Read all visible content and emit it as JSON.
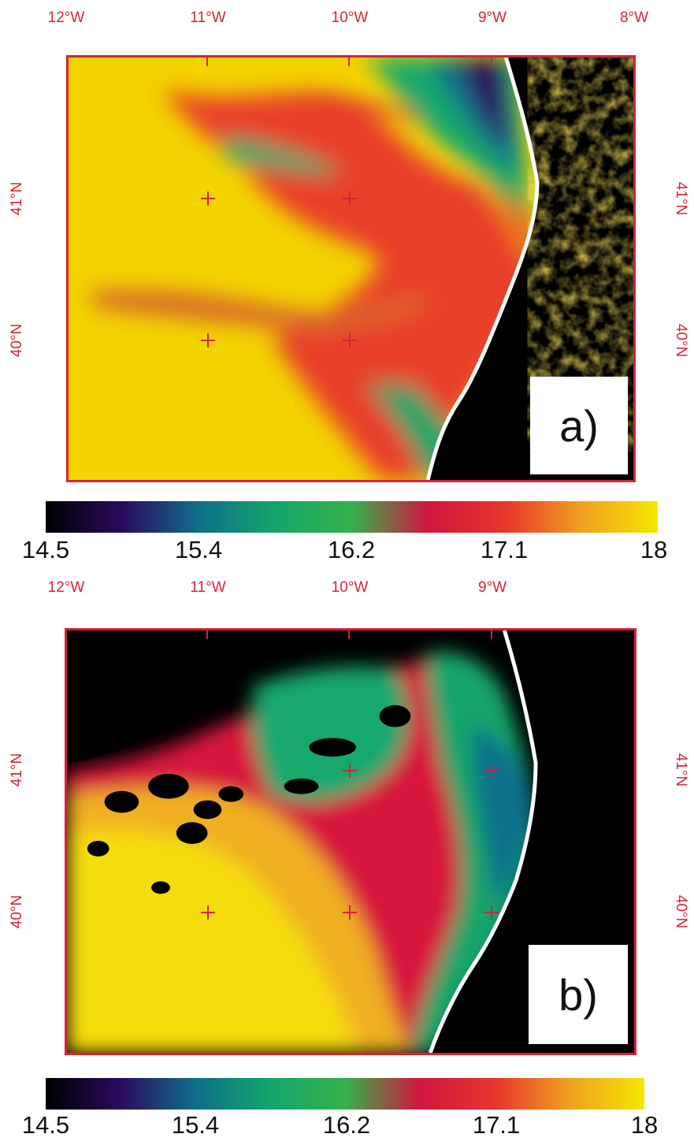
{
  "panels": [
    {
      "id": "a",
      "label": "a)",
      "lon_labels": [
        "12°W",
        "11°W",
        "10°W",
        "9°W",
        "8°W"
      ],
      "lat_labels": [
        "41°N",
        "40°N"
      ]
    },
    {
      "id": "b",
      "label": "b)",
      "lon_labels": [
        "12°W",
        "11°W",
        "10°W",
        "9°W"
      ],
      "lat_labels": [
        "41°N",
        "40°N"
      ]
    }
  ],
  "colorbar": {
    "ticks": [
      "14.5",
      "15.4",
      "16.2",
      "17.1",
      "18"
    ],
    "colors": [
      "#000000",
      "#2a0b5e",
      "#0f6e8a",
      "#13a56b",
      "#35b24a",
      "#d1153f",
      "#e8352d",
      "#f0a020",
      "#f5e600"
    ]
  },
  "colors": {
    "axis": "#d6223a",
    "coast": "#ffffff",
    "land": "#000000"
  }
}
